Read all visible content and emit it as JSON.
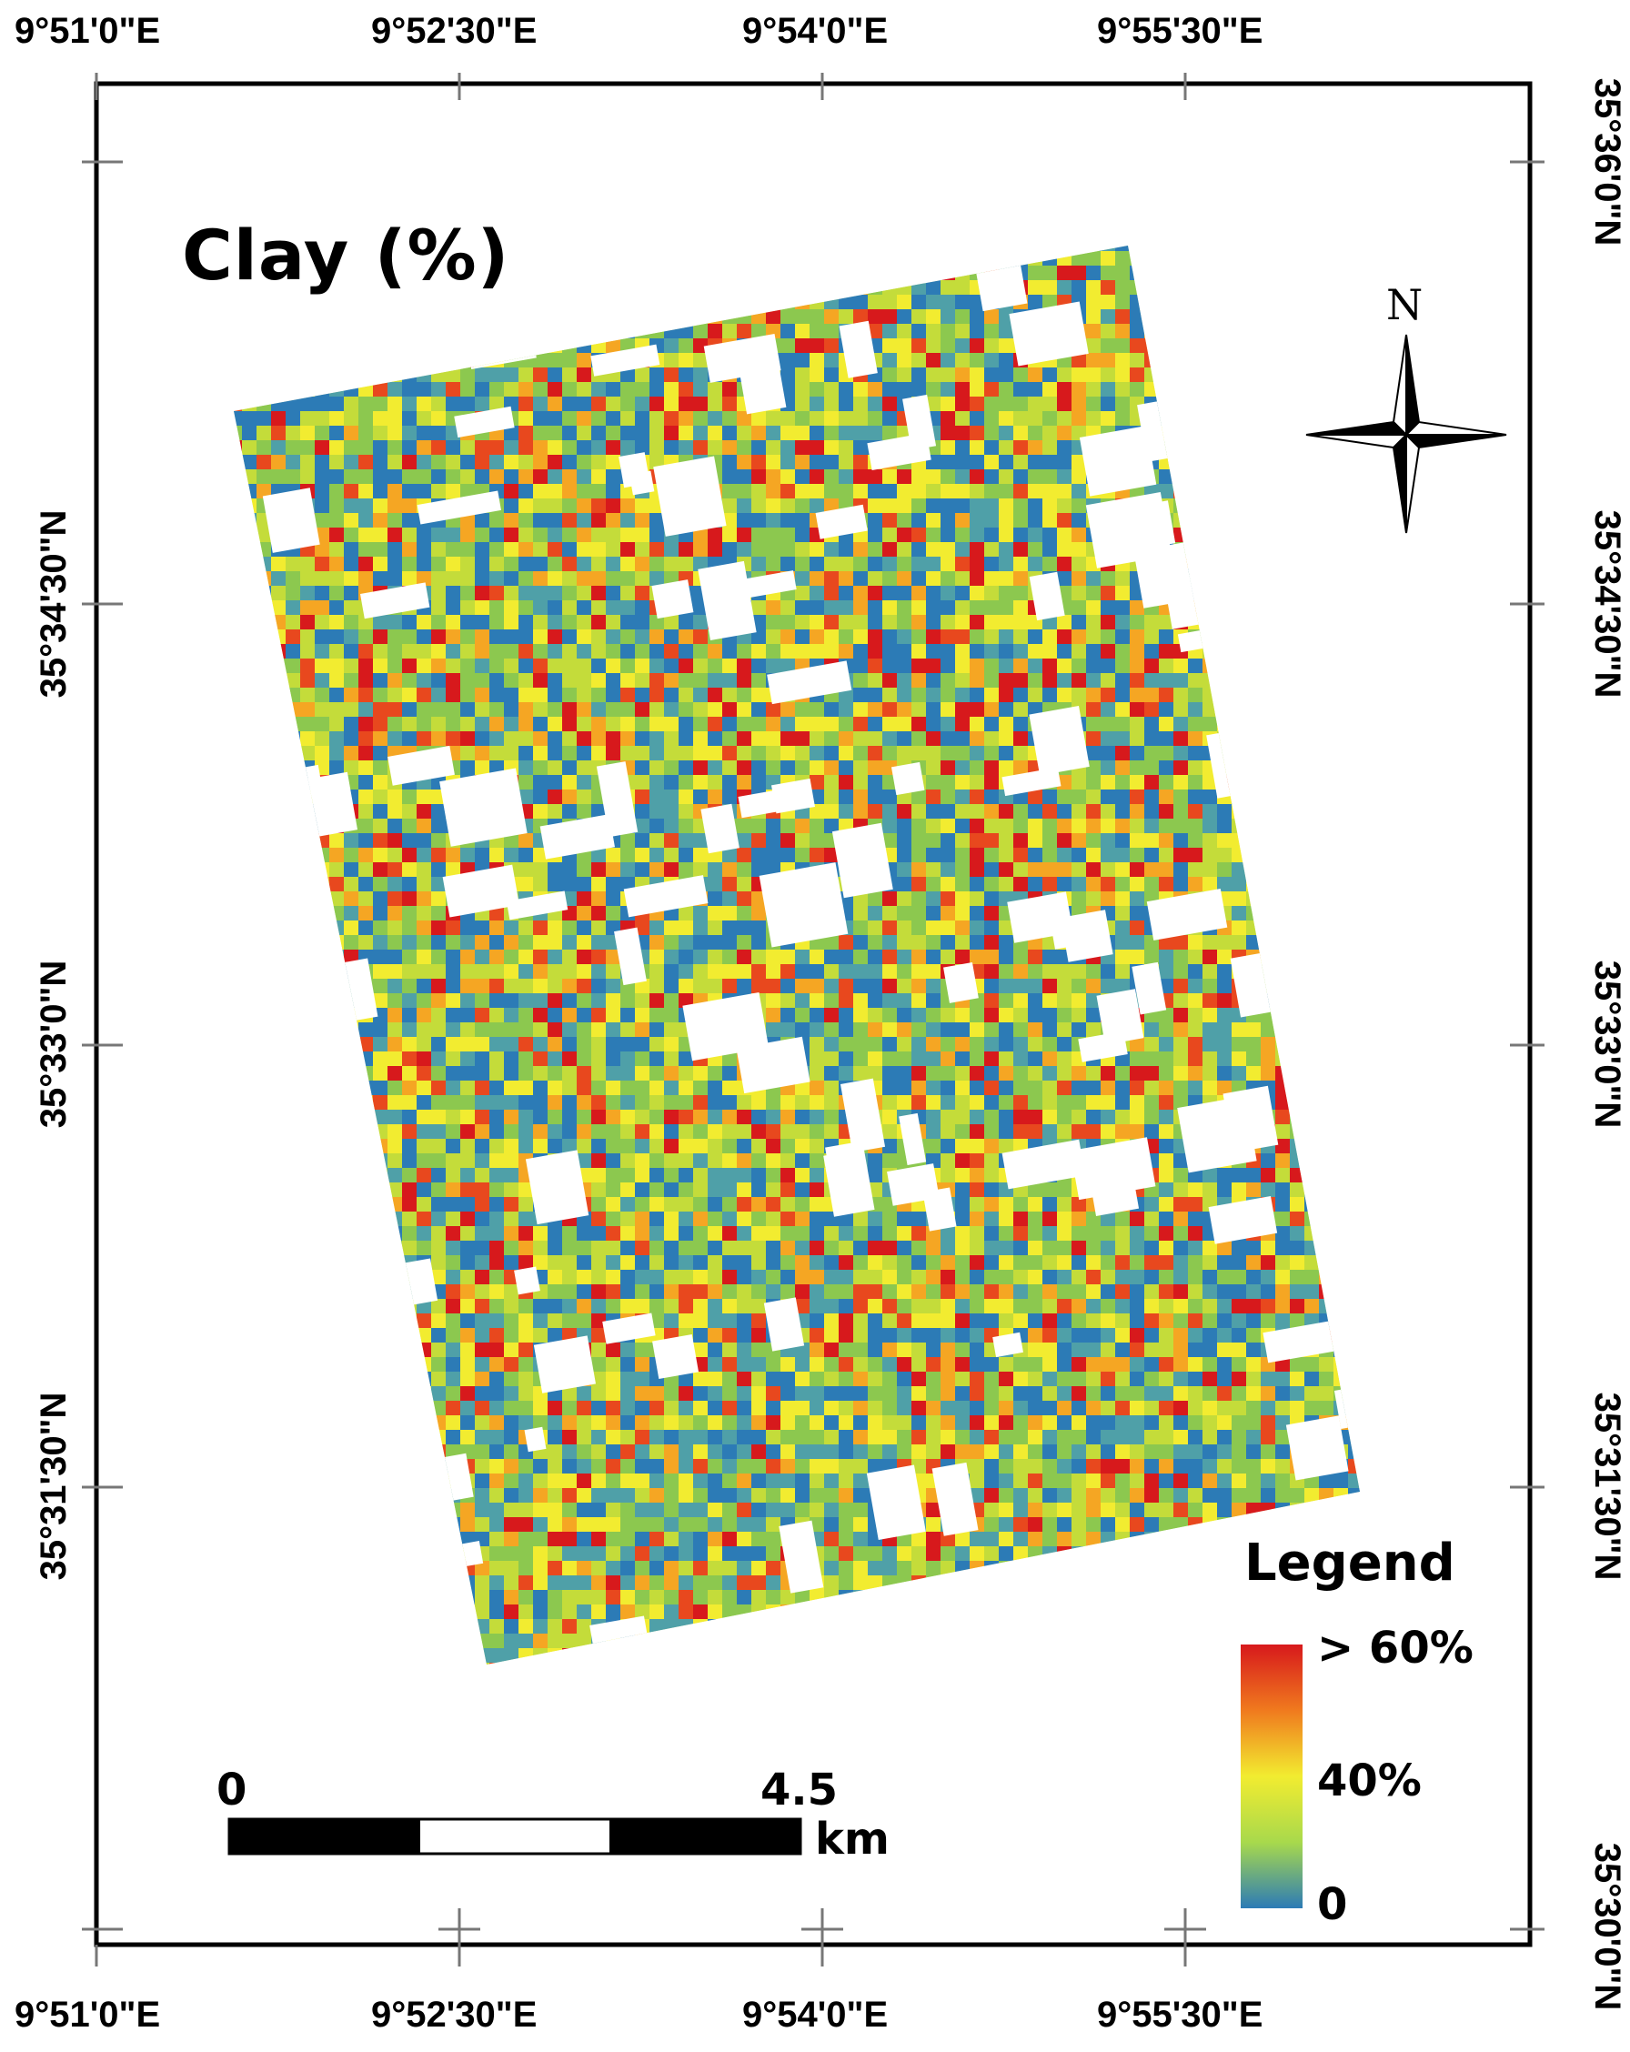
{
  "map": {
    "title": "Clay (%)",
    "north_label": "N",
    "graticule": {
      "top_labels": [
        "9°51'0\"E",
        "9°52'30\"E",
        "9°54'0\"E",
        "9°55'30\"E"
      ],
      "bottom_labels": [
        "9°51'0\"E",
        "9°52'30\"E",
        "9°54'0\"E",
        "9°55'30\"E"
      ],
      "left_labels": [
        "35°34'30\"N",
        "35°33'0\"N",
        "35°31'30\"N"
      ],
      "right_labels": [
        "35°36'0\"N",
        "35°34'30\"N",
        "35°33'0\"N",
        "35°31'30\"N",
        "35°30'0\"N"
      ]
    },
    "legend": {
      "title": "Legend",
      "max_label": "> 60%",
      "mid_label": "40%",
      "min_label": "0",
      "colors": [
        "#d7191c",
        "#f07a1e",
        "#f2ec30",
        "#a8d94c",
        "#2c7bb6"
      ]
    },
    "scale_bar": {
      "start_label": "0",
      "end_label": "4.5",
      "unit": "km"
    },
    "raster_palette": [
      "#2c7bb6",
      "#4fa0a8",
      "#8cc84f",
      "#c4dc3a",
      "#f2ec30",
      "#f5a623",
      "#e8481e",
      "#d7191c",
      "#ffffff"
    ]
  }
}
